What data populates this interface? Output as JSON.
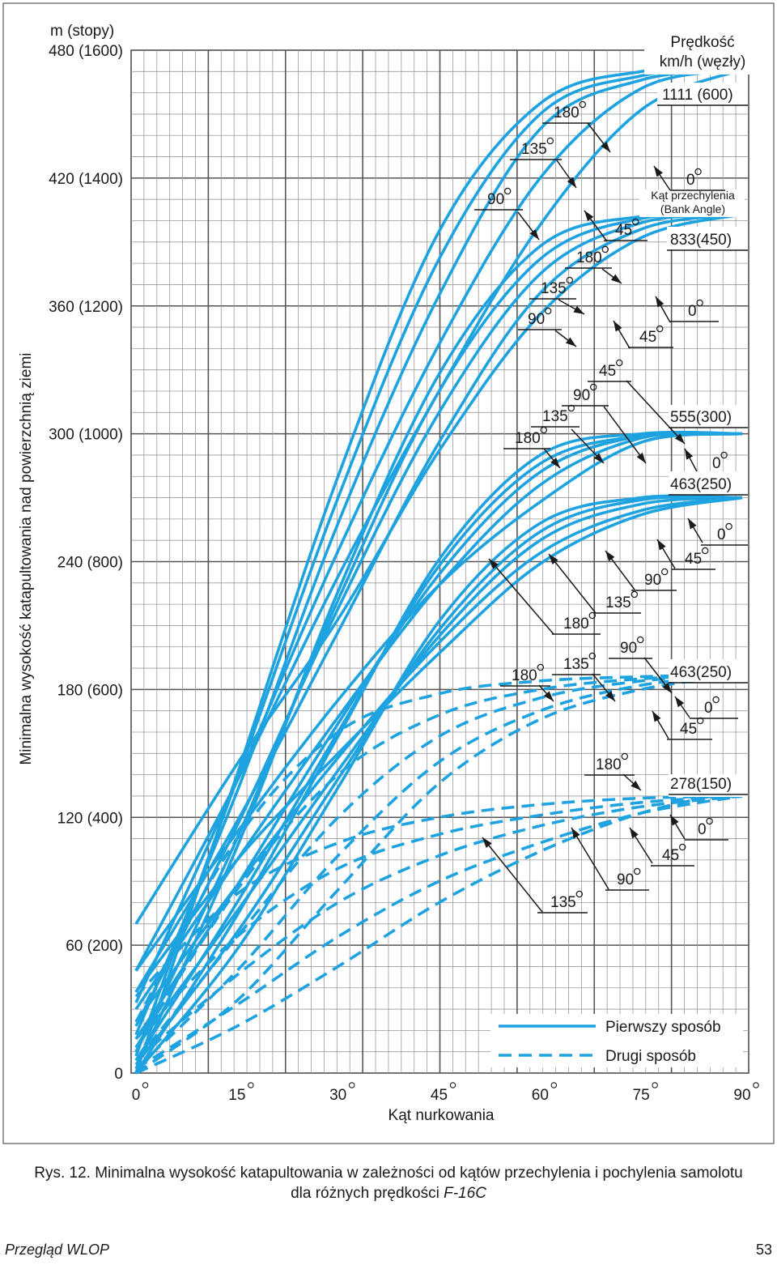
{
  "chart_data": {
    "type": "line",
    "title": "",
    "xlabel": "Kąt nurkowania",
    "ylabel": "Minimalna wysokość katapultowania nad powierzchnią ziemi",
    "y_unit_label": "m (stopy)",
    "xlim": [
      0,
      90
    ],
    "ylim": [
      0,
      480
    ],
    "x_ticks": [
      {
        "value": 0,
        "label": "0"
      },
      {
        "value": 15,
        "label": "15"
      },
      {
        "value": 30,
        "label": "30"
      },
      {
        "value": 45,
        "label": "45"
      },
      {
        "value": 60,
        "label": "60"
      },
      {
        "value": 75,
        "label": "75"
      },
      {
        "value": 90,
        "label": "90"
      }
    ],
    "y_ticks": [
      {
        "value": 0,
        "label": "0"
      },
      {
        "value": 60,
        "label": "60 (200)"
      },
      {
        "value": 120,
        "label": "120 (400)"
      },
      {
        "value": 180,
        "label": "180 (600)"
      },
      {
        "value": 240,
        "label": "240 (800)"
      },
      {
        "value": 300,
        "label": "300 (1000)"
      },
      {
        "value": 360,
        "label": "360 (1200)"
      },
      {
        "value": 420,
        "label": "420 (1400)"
      },
      {
        "value": 480,
        "label": "480 (1600)"
      }
    ],
    "grid": true,
    "legend_title": "Prędkość km/h (węzły)",
    "legend_title_lines": [
      "Prędkość",
      "km/h (węzły)"
    ],
    "bank_angle_label_lines": [
      "Kąt przechylenia",
      "(Bank Angle)"
    ],
    "legend": [
      {
        "label": "Pierwszy sposób",
        "style": "solid"
      },
      {
        "label": "Drugi sposób",
        "style": "dashed"
      }
    ],
    "line_color": "#1ea3e0",
    "series": [
      {
        "speed": "1111 (600)",
        "bank": "0",
        "style": "solid",
        "x": [
          0,
          15,
          30,
          45,
          60,
          75,
          90
        ],
        "y": [
          48,
          137,
          233,
          320,
          398,
          452,
          471
        ]
      },
      {
        "speed": "1111 (600)",
        "bank": "45",
        "style": "solid",
        "x": [
          0,
          15,
          30,
          45,
          60,
          75,
          90
        ],
        "y": [
          33,
          137,
          245,
          342,
          420,
          462,
          471
        ]
      },
      {
        "speed": "1111 (600)",
        "bank": "90",
        "style": "solid",
        "x": [
          0,
          15,
          30,
          45,
          60,
          75,
          90
        ],
        "y": [
          18,
          132,
          258,
          365,
          443,
          466,
          471
        ]
      },
      {
        "speed": "1111 (600)",
        "bank": "135",
        "style": "solid",
        "x": [
          0,
          15,
          30,
          45,
          60,
          75,
          90
        ],
        "y": [
          8,
          138,
          270,
          382,
          450,
          468,
          471
        ]
      },
      {
        "speed": "1111 (600)",
        "bank": "180",
        "style": "solid",
        "x": [
          0,
          15,
          30,
          45,
          60,
          75,
          90
        ],
        "y": [
          0,
          140,
          280,
          395,
          455,
          470,
          471
        ]
      },
      {
        "speed": "833 (450)",
        "bank": "0",
        "style": "solid",
        "x": [
          0,
          15,
          30,
          45,
          60,
          75,
          90
        ],
        "y": [
          70,
          145,
          213,
          292,
          356,
          392,
          403
        ]
      },
      {
        "speed": "833 (450)",
        "bank": "45",
        "style": "solid",
        "x": [
          0,
          15,
          30,
          45,
          60,
          75,
          90
        ],
        "y": [
          38,
          118,
          207,
          296,
          366,
          396,
          403
        ]
      },
      {
        "speed": "833 (450)",
        "bank": "90",
        "style": "solid",
        "x": [
          0,
          15,
          30,
          45,
          60,
          75,
          90
        ],
        "y": [
          22,
          116,
          218,
          310,
          375,
          399,
          403
        ]
      },
      {
        "speed": "833 (450)",
        "bank": "135",
        "style": "solid",
        "x": [
          0,
          15,
          30,
          45,
          60,
          75,
          90
        ],
        "y": [
          10,
          110,
          222,
          320,
          382,
          401,
          403
        ]
      },
      {
        "speed": "833 (450)",
        "bank": "180",
        "style": "solid",
        "x": [
          0,
          15,
          30,
          45,
          60,
          75,
          90
        ],
        "y": [
          2,
          106,
          226,
          328,
          388,
          402,
          403
        ]
      },
      {
        "speed": "555 (300)",
        "bank": "0",
        "style": "solid",
        "x": [
          0,
          15,
          30,
          45,
          60,
          75,
          90
        ],
        "y": [
          48,
          113,
          175,
          229,
          268,
          296,
          300
        ]
      },
      {
        "speed": "555 (300)",
        "bank": "45",
        "style": "solid",
        "x": [
          0,
          15,
          30,
          45,
          60,
          75,
          90
        ],
        "y": [
          30,
          100,
          167,
          229,
          276,
          298,
          300
        ]
      },
      {
        "speed": "555 (300)",
        "bank": "90",
        "style": "solid",
        "x": [
          0,
          15,
          30,
          45,
          60,
          75,
          90
        ],
        "y": [
          16,
          88,
          164,
          234,
          282,
          299,
          300
        ]
      },
      {
        "speed": "555 (300)",
        "bank": "135",
        "style": "solid",
        "x": [
          0,
          15,
          30,
          45,
          60,
          75,
          90
        ],
        "y": [
          6,
          80,
          160,
          238,
          286,
          299,
          300
        ]
      },
      {
        "speed": "555 (300)",
        "bank": "180",
        "style": "solid",
        "x": [
          0,
          15,
          30,
          45,
          60,
          75,
          90
        ],
        "y": [
          0,
          74,
          158,
          241,
          290,
          300,
          300
        ]
      },
      {
        "speed": "463 (250)",
        "bank": "0",
        "style": "solid",
        "x": [
          0,
          15,
          30,
          45,
          60,
          75,
          90
        ],
        "y": [
          38,
          100,
          150,
          197,
          239,
          262,
          270
        ]
      },
      {
        "speed": "463 (250)",
        "bank": "45",
        "style": "solid",
        "x": [
          0,
          15,
          30,
          45,
          60,
          75,
          90
        ],
        "y": [
          24,
          88,
          148,
          202,
          244,
          264,
          270
        ]
      },
      {
        "speed": "463 (250)",
        "bank": "90",
        "style": "solid",
        "x": [
          0,
          15,
          30,
          45,
          60,
          75,
          90
        ],
        "y": [
          12,
          76,
          142,
          205,
          250,
          267,
          270
        ]
      },
      {
        "speed": "463 (250)",
        "bank": "135",
        "style": "solid",
        "x": [
          0,
          15,
          30,
          45,
          60,
          75,
          90
        ],
        "y": [
          4,
          66,
          138,
          208,
          254,
          269,
          270
        ]
      },
      {
        "speed": "463 (250)",
        "bank": "180",
        "style": "solid",
        "x": [
          0,
          15,
          30,
          45,
          60,
          75,
          90
        ],
        "y": [
          0,
          58,
          134,
          212,
          258,
          270,
          270
        ]
      },
      {
        "speed": "463 (250)",
        "bank": "0",
        "style": "dashed",
        "x": [
          0,
          15,
          30,
          45,
          60,
          75,
          90
        ],
        "y": [
          24,
          110,
          160,
          178,
          184,
          186,
          187
        ]
      },
      {
        "speed": "463 (250)",
        "bank": "45",
        "style": "dashed",
        "x": [
          0,
          15,
          30,
          45,
          60,
          75,
          90
        ],
        "y": [
          12,
          86,
          140,
          168,
          180,
          185,
          187
        ]
      },
      {
        "speed": "463 (250)",
        "bank": "90",
        "style": "dashed",
        "x": [
          0,
          15,
          30,
          45,
          60,
          75,
          90
        ],
        "y": [
          6,
          64,
          120,
          158,
          176,
          184,
          187
        ]
      },
      {
        "speed": "463 (250)",
        "bank": "135",
        "style": "dashed",
        "x": [
          0,
          15,
          30,
          45,
          60,
          75,
          90
        ],
        "y": [
          2,
          48,
          102,
          146,
          170,
          182,
          187
        ]
      },
      {
        "speed": "463 (250)",
        "bank": "180",
        "style": "dashed",
        "x": [
          0,
          15,
          30,
          45,
          60,
          75,
          90
        ],
        "y": [
          0,
          34,
          86,
          136,
          166,
          180,
          187
        ]
      },
      {
        "speed": "278 (150)",
        "bank": "0",
        "style": "dashed",
        "x": [
          0,
          15,
          30,
          45,
          60,
          75,
          90
        ],
        "y": [
          36,
          84,
          108,
          120,
          126,
          129,
          130
        ]
      },
      {
        "speed": "278 (150)",
        "bank": "45",
        "style": "dashed",
        "x": [
          0,
          15,
          30,
          45,
          60,
          75,
          90
        ],
        "y": [
          16,
          64,
          96,
          112,
          121,
          127,
          130
        ]
      },
      {
        "speed": "278 (150)",
        "bank": "90",
        "style": "dashed",
        "x": [
          0,
          15,
          30,
          45,
          60,
          75,
          90
        ],
        "y": [
          6,
          46,
          80,
          102,
          116,
          125,
          130
        ]
      },
      {
        "speed": "278 (150)",
        "bank": "135",
        "style": "dashed",
        "x": [
          0,
          15,
          30,
          45,
          60,
          75,
          90
        ],
        "y": [
          2,
          32,
          64,
          90,
          108,
          122,
          130
        ]
      },
      {
        "speed": "278 (150)",
        "bank": "180",
        "style": "dashed",
        "x": [
          0,
          15,
          30,
          45,
          60,
          75,
          90
        ],
        "y": [
          0,
          22,
          50,
          80,
          104,
          122,
          133
        ]
      }
    ],
    "speed_labels": [
      "1111 (600)",
      "833(450)",
      "555(300)",
      "463(250)",
      "463(250)",
      "278(150)"
    ],
    "bank_annotations": [
      {
        "text": "0",
        "group": "1111"
      },
      {
        "text": "45",
        "group": "1111"
      },
      {
        "text": "90",
        "group": "1111"
      },
      {
        "text": "135",
        "group": "1111"
      },
      {
        "text": "180",
        "group": "1111"
      },
      {
        "text": "0",
        "group": "833"
      },
      {
        "text": "45",
        "group": "833"
      },
      {
        "text": "90",
        "group": "833"
      },
      {
        "text": "135",
        "group": "833"
      },
      {
        "text": "180",
        "group": "833"
      },
      {
        "text": "0",
        "group": "555"
      },
      {
        "text": "45",
        "group": "555"
      },
      {
        "text": "90",
        "group": "555"
      },
      {
        "text": "135",
        "group": "555"
      },
      {
        "text": "180",
        "group": "555"
      },
      {
        "text": "0",
        "group": "463s"
      },
      {
        "text": "45",
        "group": "463s"
      },
      {
        "text": "90",
        "group": "463s"
      },
      {
        "text": "135",
        "group": "463s"
      },
      {
        "text": "180",
        "group": "463s"
      },
      {
        "text": "0",
        "group": "463d"
      },
      {
        "text": "45",
        "group": "463d"
      },
      {
        "text": "90",
        "group": "463d"
      },
      {
        "text": "135",
        "group": "463d"
      },
      {
        "text": "180",
        "group": "463d"
      },
      {
        "text": "0",
        "group": "278"
      },
      {
        "text": "45",
        "group": "278"
      },
      {
        "text": "90",
        "group": "278"
      },
      {
        "text": "135",
        "group": "278"
      },
      {
        "text": "180",
        "group": "278"
      }
    ]
  },
  "caption": {
    "prefix": "Rys. 12. ",
    "line1": "Minimalna wysokość katapultowania w zależności od kątów przechylenia i pochylenia samolotu",
    "line2_a": "dla różnych prędkości ",
    "line2_b": "F-16C"
  },
  "footer": {
    "journal": "Przegląd WLOP",
    "page": "53"
  }
}
